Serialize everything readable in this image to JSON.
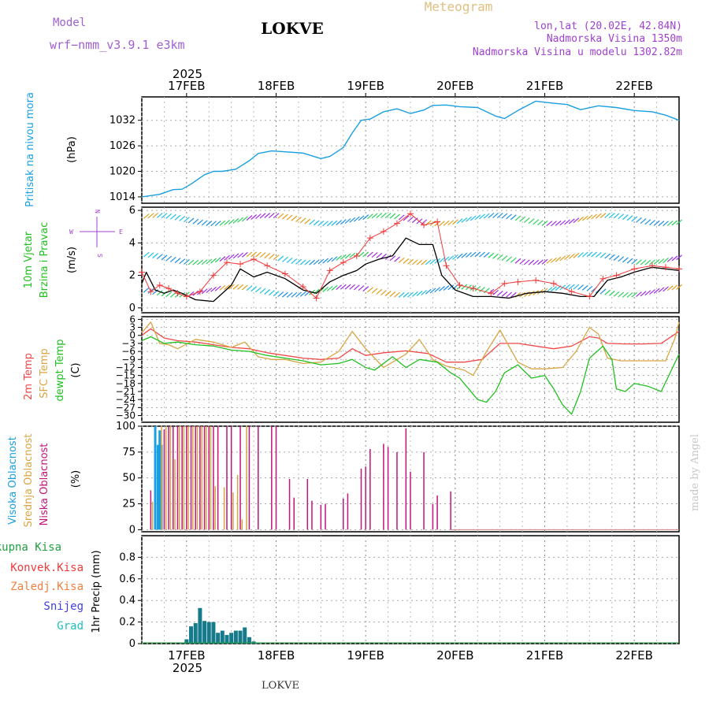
{
  "header": {
    "model_label": "Model",
    "model_name": "wrf−nmm_v3.9.1  e3km",
    "station": "LOKVE",
    "meteogram": "Meteogram",
    "coords": "lon,lat (20.02E, 42.84N)",
    "elevation": "Nadmorska Visina 1350m",
    "model_elevation": "Nadmorska Visina u modelu 1302.82m",
    "footer_station": "LOKVE",
    "watermark": "made by Angel"
  },
  "colors": {
    "pressure": "#1a9fe0",
    "wind_speed": "#000000",
    "gust": "#f03a3a",
    "t2m": "#ef4a4a",
    "tsfc": "#d9a545",
    "dewpt": "#20c020",
    "cloud_high": "#1a9fe0",
    "cloud_mid": "#d9a545",
    "cloud_low": "#c0157a",
    "precip_total": "#20a040",
    "precip_conv": "#f03a3a",
    "precip_frozen": "#f08040",
    "precip_snow": "#4040e0",
    "precip_graupel": "#20c0c0"
  },
  "time_axis": {
    "year": "2025",
    "days": [
      "17FEB",
      "18FEB",
      "19FEB",
      "20FEB",
      "21FEB",
      "22FEB"
    ],
    "day_start": 16.5,
    "day_end": 22.5
  },
  "chart_data": [
    {
      "type": "line",
      "name": "pressure",
      "ylabel": "Pritisak na nivou mora",
      "unit": "(hPa)",
      "yticks": [
        "1032",
        "1026",
        "1020",
        "1014"
      ],
      "tick_values": [
        1032,
        1026,
        1020,
        1014
      ],
      "ylim": [
        1012.5,
        1037.5
      ],
      "x": [
        16.5,
        16.7,
        16.85,
        16.95,
        17.05,
        17.2,
        17.3,
        17.4,
        17.55,
        17.7,
        17.8,
        17.95,
        18.1,
        18.3,
        18.5,
        18.6,
        18.75,
        18.85,
        18.95,
        19.05,
        19.2,
        19.35,
        19.5,
        19.65,
        19.75,
        19.9,
        20.05,
        20.25,
        20.45,
        20.55,
        20.7,
        20.9,
        21.1,
        21.25,
        21.4,
        21.6,
        21.8,
        22.0,
        22.2,
        22.35,
        22.5
      ],
      "values": [
        1014,
        1014.6,
        1015.7,
        1015.8,
        1017,
        1019.2,
        1020,
        1020,
        1020.5,
        1022.5,
        1024.2,
        1024.8,
        1024.6,
        1024.3,
        1023,
        1023.5,
        1025.6,
        1029,
        1032,
        1032.3,
        1034,
        1034.7,
        1033.6,
        1034.4,
        1035.5,
        1035.6,
        1035.2,
        1035,
        1033,
        1032.4,
        1034.3,
        1036.5,
        1036,
        1035.7,
        1034.5,
        1035.4,
        1035,
        1034.3,
        1034,
        1033.2,
        1032
      ]
    },
    {
      "type": "line",
      "name": "wind",
      "ylabel_1": "10m Vjetar",
      "ylabel_2": "Brzina i Pravac",
      "unit": "(m/s)",
      "yticks": [
        "6",
        "4",
        "2",
        "0"
      ],
      "tick_values": [
        6,
        4,
        2,
        0
      ],
      "ylim": [
        -0.3,
        6.2
      ],
      "compass": {
        "n": "N",
        "s": "S",
        "w": "W",
        "e": "E"
      },
      "series": [
        {
          "name": "speed",
          "x": [
            16.5,
            16.55,
            16.65,
            16.75,
            16.85,
            16.95,
            17.1,
            17.3,
            17.5,
            17.6,
            17.75,
            17.9,
            18.1,
            18.3,
            18.45,
            18.6,
            18.75,
            18.9,
            19.0,
            19.15,
            19.3,
            19.45,
            19.6,
            19.75,
            19.85,
            20.0,
            20.2,
            20.4,
            20.6,
            20.8,
            21.0,
            21.2,
            21.4,
            21.55,
            21.7,
            21.85,
            22.0,
            22.2,
            22.35,
            22.5
          ],
          "values": [
            1.5,
            2.2,
            1.1,
            0.9,
            1.1,
            0.9,
            0.5,
            0.4,
            1.4,
            2.4,
            1.9,
            2.2,
            1.8,
            1.1,
            0.9,
            1.6,
            2.0,
            2.3,
            2.7,
            3.0,
            3.2,
            4.3,
            3.9,
            3.9,
            2.0,
            1.1,
            0.7,
            0.7,
            0.6,
            0.9,
            1.0,
            0.9,
            0.7,
            0.7,
            1.7,
            1.9,
            2.2,
            2.5,
            2.4,
            2.3
          ]
        },
        {
          "name": "gust",
          "x": [
            16.5,
            16.6,
            16.7,
            16.8,
            16.9,
            17.0,
            17.15,
            17.3,
            17.45,
            17.6,
            17.75,
            17.9,
            18.1,
            18.3,
            18.45,
            18.6,
            18.75,
            18.9,
            19.05,
            19.2,
            19.35,
            19.5,
            19.65,
            19.8,
            19.9,
            20.05,
            20.2,
            20.4,
            20.55,
            20.7,
            20.9,
            21.1,
            21.3,
            21.5,
            21.65,
            21.8,
            22.0,
            22.2,
            22.35,
            22.5
          ],
          "values": [
            2.2,
            1.0,
            1.4,
            1.2,
            0.9,
            0.7,
            1.0,
            2.0,
            2.8,
            2.7,
            3.0,
            2.6,
            2.1,
            1.3,
            0.6,
            2.3,
            2.8,
            3.2,
            4.3,
            4.7,
            5.2,
            5.8,
            5.1,
            5.3,
            2.6,
            1.4,
            1.2,
            0.9,
            1.5,
            1.6,
            1.7,
            1.5,
            1.0,
            0.7,
            1.8,
            2.0,
            2.4,
            2.6,
            2.5,
            2.4
          ]
        }
      ]
    },
    {
      "type": "line",
      "name": "temperature",
      "ylabel_1": "2m Temp",
      "ylabel_2": "SFC Temp",
      "ylabel_3": "dewpt Temp",
      "unit": "(C)",
      "yticks": [
        "6",
        "3",
        "0",
        "−3",
        "−6",
        "−9",
        "−12",
        "−15",
        "−18",
        "−21",
        "−24",
        "−27",
        "−30"
      ],
      "tick_values": [
        6,
        3,
        0,
        -3,
        -6,
        -9,
        -12,
        -15,
        -18,
        -21,
        -24,
        -27,
        -30
      ],
      "ylim": [
        -32.5,
        7
      ],
      "series": [
        {
          "name": "t2m",
          "x": [
            16.5,
            16.6,
            16.75,
            16.9,
            17.1,
            17.3,
            17.5,
            17.7,
            17.9,
            18.1,
            18.3,
            18.5,
            18.7,
            18.85,
            19.0,
            19.2,
            19.45,
            19.7,
            19.9,
            20.1,
            20.3,
            20.5,
            20.7,
            20.9,
            21.1,
            21.3,
            21.5,
            21.6,
            21.7,
            21.9,
            22.1,
            22.3,
            22.5
          ],
          "values": [
            0,
            2.5,
            -1,
            -2,
            -2.5,
            -3.5,
            -4.5,
            -5,
            -6.5,
            -7.5,
            -8.5,
            -9,
            -8.5,
            -5,
            -7.5,
            -6.5,
            -5.8,
            -6.8,
            -10,
            -10,
            -9,
            -3,
            -3,
            -4,
            -5,
            -4,
            -0.5,
            -1,
            -3,
            -3.2,
            -3.2,
            -3,
            1.5
          ]
        },
        {
          "name": "tsfc",
          "x": [
            16.5,
            16.6,
            16.7,
            16.8,
            16.9,
            17.1,
            17.3,
            17.5,
            17.65,
            17.8,
            17.95,
            18.1,
            18.3,
            18.5,
            18.7,
            18.85,
            19.0,
            19.2,
            19.45,
            19.6,
            19.75,
            19.9,
            20.1,
            20.2,
            20.35,
            20.5,
            20.7,
            20.85,
            21.0,
            21.2,
            21.35,
            21.5,
            21.6,
            21.7,
            21.85,
            22.0,
            22.2,
            22.35,
            22.45,
            22.5
          ],
          "values": [
            1,
            5,
            -3,
            -3.5,
            -5,
            -1.5,
            -2.5,
            -4.5,
            -2.5,
            -8,
            -9,
            -9,
            -10.5,
            -10,
            -6,
            1.5,
            -5,
            -12,
            -7,
            -1.5,
            -9,
            -11.5,
            -13,
            -15,
            -6,
            2,
            -10,
            -12.5,
            -12.5,
            -12,
            -6,
            3,
            0.5,
            -8.5,
            -9.5,
            -9.5,
            -9.5,
            -9.5,
            -1.5,
            5
          ]
        },
        {
          "name": "dewpt",
          "x": [
            16.5,
            16.6,
            16.75,
            16.9,
            17.1,
            17.3,
            17.5,
            17.7,
            17.9,
            18.1,
            18.3,
            18.5,
            18.7,
            18.85,
            19.0,
            19.1,
            19.3,
            19.45,
            19.6,
            19.8,
            19.95,
            20.05,
            20.15,
            20.25,
            20.35,
            20.45,
            20.55,
            20.7,
            20.85,
            21.0,
            21.1,
            21.2,
            21.3,
            21.4,
            21.5,
            21.65,
            21.75,
            21.8,
            21.9,
            22.0,
            22.15,
            22.3,
            22.5
          ],
          "values": [
            -2,
            -0.5,
            -3,
            -2.5,
            -3.5,
            -4,
            -5.5,
            -6,
            -7.5,
            -8.5,
            -9.5,
            -11,
            -10.5,
            -9,
            -12,
            -13,
            -8,
            -12,
            -9,
            -10,
            -14,
            -16,
            -20,
            -24,
            -25,
            -21,
            -14,
            -11,
            -16,
            -15,
            -20,
            -26,
            -29.5,
            -21,
            -8.5,
            -4,
            -9,
            -20,
            -21,
            -18,
            -19,
            -21,
            -7
          ]
        }
      ]
    },
    {
      "type": "bar",
      "name": "cloud",
      "ylabel_1": "Visoka Oblacnost",
      "ylabel_2": "Srednja Oblacnost",
      "ylabel_3": "Niska  Oblacnost",
      "unit": "(%)",
      "yticks": [
        "100",
        "75",
        "50",
        "25",
        "0"
      ],
      "tick_values": [
        100,
        75,
        50,
        25,
        0
      ],
      "ylim": [
        -2,
        100
      ],
      "series": [
        {
          "name": "high",
          "x": [
            16.65,
            16.68,
            16.7,
            16.72
          ],
          "values": [
            100,
            82,
            96,
            82
          ]
        },
        {
          "name": "mid",
          "x": [
            16.62,
            16.72,
            16.77,
            16.82,
            16.87,
            16.92,
            16.97,
            17.02,
            17.07,
            17.12,
            17.17,
            17.22,
            17.27,
            17.32,
            17.42,
            17.52,
            17.57,
            17.62,
            17.67
          ],
          "values": [
            27,
            100,
            99,
            100,
            68,
            100,
            100,
            100,
            100,
            100,
            100,
            100,
            100,
            42,
            41,
            36,
            53,
            10,
            100
          ]
        },
        {
          "name": "low",
          "x": [
            16.6,
            16.75,
            16.8,
            16.85,
            16.9,
            16.95,
            17.0,
            17.05,
            17.1,
            17.15,
            17.2,
            17.25,
            17.3,
            17.35,
            17.45,
            17.5,
            17.6,
            17.7,
            17.8,
            17.95,
            18.0,
            18.15,
            18.2,
            18.35,
            18.4,
            18.5,
            18.55,
            18.75,
            18.8,
            18.95,
            19.0,
            19.05,
            19.2,
            19.25,
            19.35,
            19.45,
            19.5,
            19.65,
            19.75,
            19.8,
            19.95
          ],
          "values": [
            38,
            97,
            100,
            100,
            100,
            100,
            100,
            100,
            100,
            100,
            100,
            100,
            100,
            100,
            100,
            100,
            100,
            100,
            100,
            100,
            100,
            49,
            31,
            49,
            28,
            24,
            25,
            30,
            35,
            59,
            61,
            78,
            83,
            80,
            75,
            98,
            56,
            75,
            25,
            33,
            37
          ]
        }
      ]
    },
    {
      "type": "bar",
      "name": "precip",
      "ylabel": "1hr Precip (mm)",
      "legend": [
        "Ukupna  Kisa",
        "Konvek.Kisa",
        "Zaledj.Kisa",
        "Snijeg",
        "Grad"
      ],
      "yticks": [
        "0.8",
        "0.6",
        "0.4",
        "0.2",
        "0"
      ],
      "tick_values": [
        0.8,
        0.6,
        0.4,
        0.2,
        0
      ],
      "ylim": [
        0,
        1.0
      ],
      "x": [
        16.95,
        17.0,
        17.05,
        17.1,
        17.15,
        17.2,
        17.25,
        17.3,
        17.35,
        17.4,
        17.45,
        17.5,
        17.55,
        17.6,
        17.65,
        17.7,
        17.75,
        17.8
      ],
      "values": [
        0.01,
        0.04,
        0.16,
        0.19,
        0.33,
        0.21,
        0.2,
        0.2,
        0.1,
        0.12,
        0.08,
        0.1,
        0.12,
        0.12,
        0.15,
        0.06,
        0.02,
        0.01
      ]
    }
  ]
}
